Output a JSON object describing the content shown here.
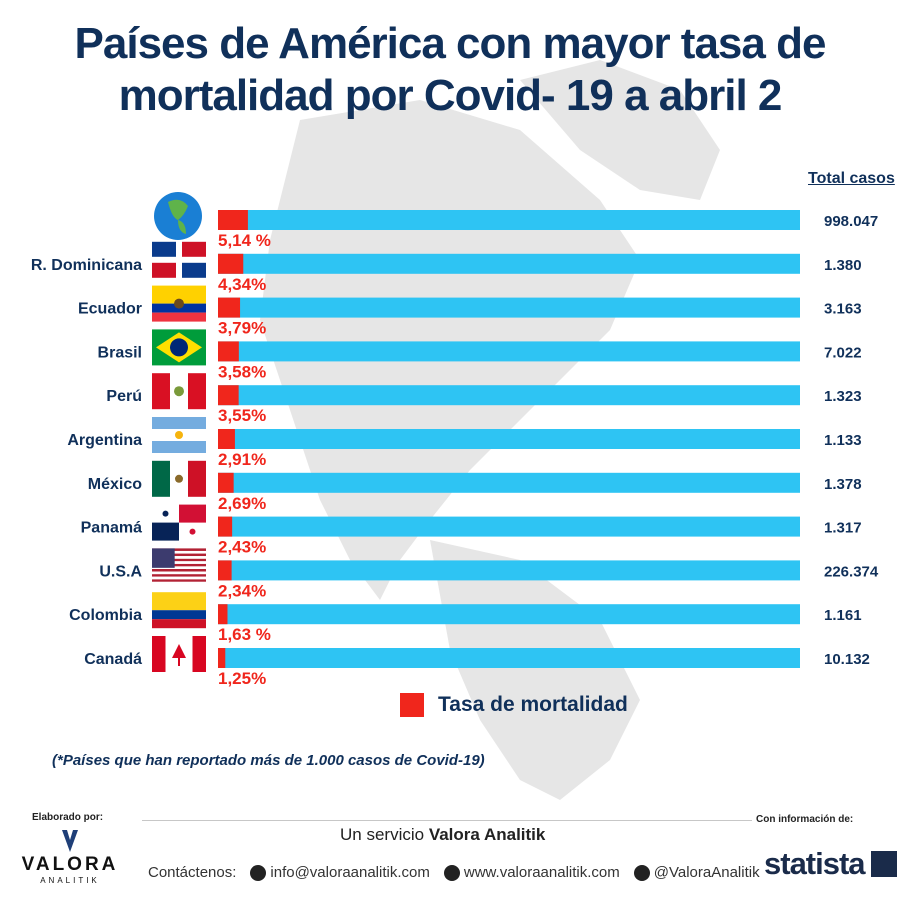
{
  "title": {
    "line1": "Países de América con mayor tasa de",
    "line2": "mortalidad por Covid- 19 a abril 2"
  },
  "total_header": "Total casos",
  "legend": {
    "label": "Tasa de mortalidad",
    "color": "#f0261c"
  },
  "footnote": "(*Países que han reportado más de 1.000 casos de Covid-19)",
  "footer": {
    "elaborado": "Elaborado por:",
    "con_informacion": "Con información de:",
    "servicio_prefix": "Un servicio",
    "servicio_brand": "Valora Analitik",
    "logo_word": "VALORA",
    "logo_sub": "ANALITIK",
    "contact_label": "Contáctenos:",
    "email": "info@valoraanalitik.com",
    "website": "www.valoraanalitik.com",
    "twitter": "@ValoraAnalitik",
    "statista": "statista"
  },
  "colors": {
    "bar_total": "#2ec4f3",
    "bar_rate": "#f0261c",
    "title": "#10305a",
    "label": "#10305a"
  },
  "chart_data": {
    "type": "bar",
    "orientation": "horizontal",
    "series": [
      {
        "name": "Tasa de mortalidad",
        "unit": "%",
        "values": [
          5.14,
          4.34,
          3.79,
          3.58,
          3.55,
          2.91,
          2.69,
          2.43,
          2.34,
          1.63,
          1.25
        ]
      },
      {
        "name": "Total casos",
        "values": [
          998047,
          1380,
          3163,
          7022,
          1323,
          1133,
          1378,
          1317,
          226374,
          1161,
          10132
        ]
      }
    ],
    "categories": [
      "",
      "R. Dominicana",
      "Ecuador",
      "Brasil",
      "Perú",
      "Argentina",
      "México",
      "Panamá",
      "U.S.A",
      "Colombia",
      "Canadá"
    ],
    "category_icons": [
      "globe-icon",
      "flag-dominican-republic",
      "flag-ecuador",
      "flag-brazil",
      "flag-peru",
      "flag-argentina",
      "flag-mexico",
      "flag-panama",
      "flag-usa",
      "flag-colombia",
      "flag-canada"
    ],
    "rate_labels": [
      "5,14 %",
      "4,34%",
      "3,79%",
      "3,58%",
      "3,55%",
      "2,91%",
      "2,69%",
      "2,43%",
      "2,34%",
      "1,63 %",
      "1,25%"
    ],
    "total_labels": [
      "998.047",
      "1.380",
      "3.163",
      "7.022",
      "1.323",
      "1.133",
      "1.378",
      "1.317",
      "226.374",
      "1.161",
      "10.132"
    ],
    "xlim": [
      0,
      100
    ]
  }
}
